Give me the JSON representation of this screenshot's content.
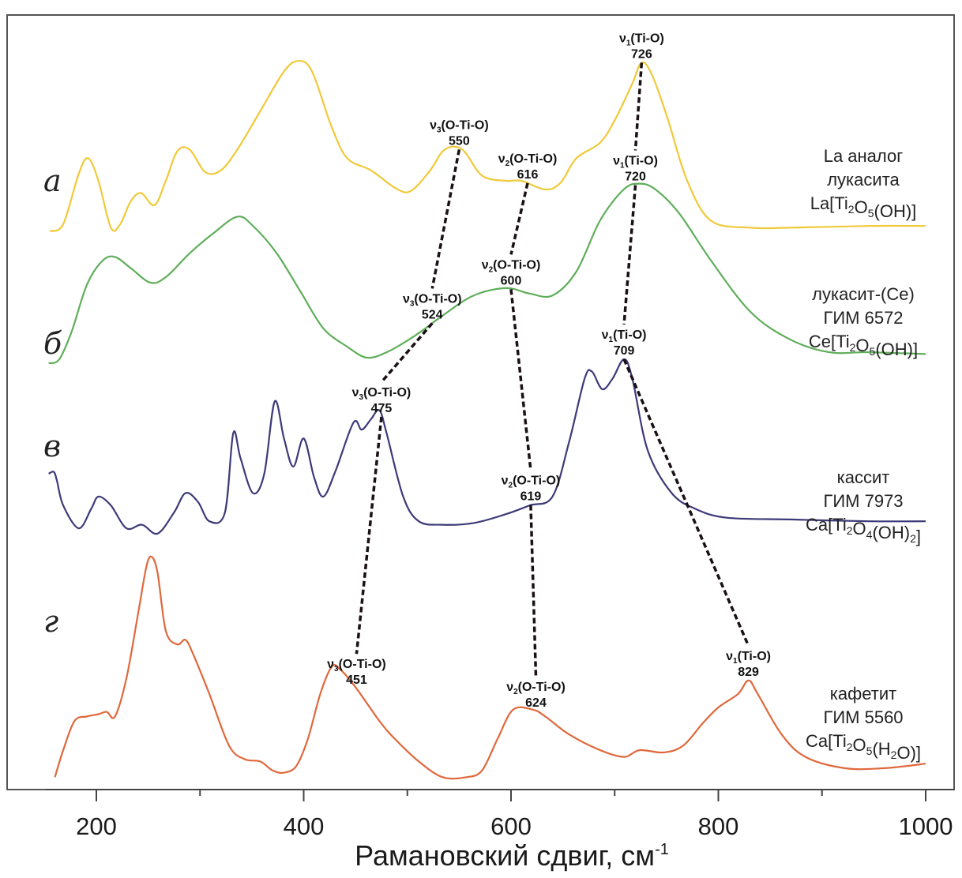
{
  "chart_data": {
    "type": "line",
    "title": "",
    "xlabel": "Рамановский сдвиг, см",
    "xlabel_superscript": "-1",
    "ylabel": "",
    "xlim": [
      150,
      1020
    ],
    "x_ticks_major": [
      200,
      400,
      600,
      800,
      1000
    ],
    "x_ticks_minor": [
      300,
      500,
      700,
      900
    ],
    "y_ticks": [],
    "grid": false,
    "layout": "stacked offset spectra, top to bottom",
    "series": [
      {
        "letter": "а",
        "name": "La аналог лукасита",
        "label_lines": [
          "La аналог",
          "лукасита"
        ],
        "formula": [
          [
            "La[Ti",
            false
          ],
          [
            "2",
            true
          ],
          [
            "O",
            false
          ],
          [
            "5",
            true
          ],
          [
            "(OH)]",
            false
          ]
        ],
        "color": "#f0c93a",
        "points": [
          [
            155,
            0.01
          ],
          [
            168,
            0.05
          ],
          [
            183,
            0.34
          ],
          [
            192,
            0.43
          ],
          [
            202,
            0.3
          ],
          [
            214,
            0.03
          ],
          [
            223,
            0.05
          ],
          [
            233,
            0.18
          ],
          [
            243,
            0.23
          ],
          [
            256,
            0.16
          ],
          [
            267,
            0.3
          ],
          [
            278,
            0.47
          ],
          [
            290,
            0.48
          ],
          [
            305,
            0.35
          ],
          [
            320,
            0.36
          ],
          [
            336,
            0.48
          ],
          [
            358,
            0.7
          ],
          [
            381,
            0.93
          ],
          [
            395,
            0.99
          ],
          [
            408,
            0.93
          ],
          [
            427,
            0.61
          ],
          [
            442,
            0.43
          ],
          [
            465,
            0.36
          ],
          [
            488,
            0.26
          ],
          [
            503,
            0.24
          ],
          [
            522,
            0.36
          ],
          [
            536,
            0.48
          ],
          [
            553,
            0.48
          ],
          [
            572,
            0.33
          ],
          [
            595,
            0.3
          ],
          [
            610,
            0.3
          ],
          [
            633,
            0.25
          ],
          [
            648,
            0.29
          ],
          [
            663,
            0.43
          ],
          [
            686,
            0.52
          ],
          [
            701,
            0.66
          ],
          [
            717,
            0.86
          ],
          [
            726,
            0.98
          ],
          [
            736,
            0.91
          ],
          [
            751,
            0.66
          ],
          [
            770,
            0.3
          ],
          [
            793,
            0.07
          ],
          [
            831,
            0.03
          ],
          [
            869,
            0.03
          ],
          [
            945,
            0.04
          ],
          [
            1000,
            0.04
          ]
        ]
      },
      {
        "letter": "б",
        "name": "лукасит-(Ce)",
        "label_lines": [
          "лукасит-(Ce)",
          "ГИМ 6572"
        ],
        "formula": [
          [
            "Ce[Ti",
            false
          ],
          [
            "2",
            true
          ],
          [
            "O",
            false
          ],
          [
            "5",
            true
          ],
          [
            "(OH)]",
            false
          ]
        ],
        "color": "#5fae5a",
        "points": [
          [
            154,
            0.0
          ],
          [
            164,
            0.02
          ],
          [
            176,
            0.17
          ],
          [
            191,
            0.43
          ],
          [
            206,
            0.56
          ],
          [
            218,
            0.58
          ],
          [
            233,
            0.52
          ],
          [
            252,
            0.44
          ],
          [
            267,
            0.47
          ],
          [
            290,
            0.6
          ],
          [
            313,
            0.71
          ],
          [
            336,
            0.8
          ],
          [
            351,
            0.75
          ],
          [
            374,
            0.6
          ],
          [
            397,
            0.39
          ],
          [
            419,
            0.19
          ],
          [
            442,
            0.09
          ],
          [
            461,
            0.03
          ],
          [
            480,
            0.06
          ],
          [
            499,
            0.12
          ],
          [
            515,
            0.18
          ],
          [
            534,
            0.26
          ],
          [
            564,
            0.37
          ],
          [
            595,
            0.41
          ],
          [
            618,
            0.38
          ],
          [
            640,
            0.37
          ],
          [
            663,
            0.5
          ],
          [
            686,
            0.78
          ],
          [
            709,
            0.95
          ],
          [
            724,
            0.98
          ],
          [
            739,
            0.95
          ],
          [
            762,
            0.82
          ],
          [
            793,
            0.56
          ],
          [
            831,
            0.28
          ],
          [
            869,
            0.13
          ],
          [
            907,
            0.06
          ],
          [
            945,
            0.06
          ],
          [
            1000,
            0.05
          ]
        ]
      },
      {
        "letter": "в",
        "name": "кассит",
        "label_lines": [
          "кассит",
          "ГИМ 7973"
        ],
        "formula": [
          [
            "Ca[Ti",
            false
          ],
          [
            "2",
            true
          ],
          [
            "O",
            false
          ],
          [
            "4",
            true
          ],
          [
            "(OH)",
            false
          ],
          [
            "2",
            true
          ],
          [
            "]",
            false
          ]
        ],
        "color": "#3d3a78",
        "points": [
          [
            154,
            0.35
          ],
          [
            159,
            0.36
          ],
          [
            162,
            0.31
          ],
          [
            168,
            0.17
          ],
          [
            183,
            0.04
          ],
          [
            195,
            0.15
          ],
          [
            202,
            0.22
          ],
          [
            214,
            0.17
          ],
          [
            229,
            0.04
          ],
          [
            244,
            0.06
          ],
          [
            259,
            0.01
          ],
          [
            275,
            0.13
          ],
          [
            286,
            0.24
          ],
          [
            298,
            0.19
          ],
          [
            309,
            0.08
          ],
          [
            324,
            0.13
          ],
          [
            332,
            0.58
          ],
          [
            339,
            0.44
          ],
          [
            351,
            0.24
          ],
          [
            362,
            0.35
          ],
          [
            372,
            0.76
          ],
          [
            381,
            0.55
          ],
          [
            390,
            0.39
          ],
          [
            400,
            0.55
          ],
          [
            410,
            0.33
          ],
          [
            419,
            0.22
          ],
          [
            431,
            0.37
          ],
          [
            448,
            0.64
          ],
          [
            456,
            0.6
          ],
          [
            465,
            0.66
          ],
          [
            473,
            0.71
          ],
          [
            480,
            0.58
          ],
          [
            496,
            0.22
          ],
          [
            511,
            0.08
          ],
          [
            534,
            0.06
          ],
          [
            564,
            0.07
          ],
          [
            595,
            0.12
          ],
          [
            618,
            0.17
          ],
          [
            640,
            0.22
          ],
          [
            656,
            0.53
          ],
          [
            671,
            0.89
          ],
          [
            678,
            0.93
          ],
          [
            688,
            0.83
          ],
          [
            698,
            0.89
          ],
          [
            709,
            1.0
          ],
          [
            717,
            0.89
          ],
          [
            732,
            0.48
          ],
          [
            755,
            0.24
          ],
          [
            778,
            0.15
          ],
          [
            808,
            0.1
          ],
          [
            869,
            0.09
          ],
          [
            945,
            0.08
          ],
          [
            1000,
            0.08
          ]
        ]
      },
      {
        "letter": "г",
        "name": "кафетит",
        "label_lines": [
          "кафетит",
          "ГИМ 5560"
        ],
        "formula": [
          [
            "Ca[Ti",
            false
          ],
          [
            "2",
            true
          ],
          [
            "O",
            false
          ],
          [
            "5",
            true
          ],
          [
            "(H",
            false
          ],
          [
            "2",
            true
          ],
          [
            "O)]",
            false
          ]
        ],
        "color": "#e0683c",
        "points": [
          [
            160,
            0.02
          ],
          [
            168,
            0.14
          ],
          [
            179,
            0.27
          ],
          [
            191,
            0.29
          ],
          [
            202,
            0.3
          ],
          [
            210,
            0.31
          ],
          [
            218,
            0.29
          ],
          [
            229,
            0.46
          ],
          [
            240,
            0.74
          ],
          [
            248,
            0.95
          ],
          [
            253,
            1.0
          ],
          [
            259,
            0.93
          ],
          [
            267,
            0.67
          ],
          [
            278,
            0.61
          ],
          [
            286,
            0.63
          ],
          [
            294,
            0.56
          ],
          [
            309,
            0.39
          ],
          [
            328,
            0.16
          ],
          [
            343,
            0.1
          ],
          [
            358,
            0.09
          ],
          [
            370,
            0.05
          ],
          [
            381,
            0.04
          ],
          [
            393,
            0.07
          ],
          [
            404,
            0.19
          ],
          [
            416,
            0.39
          ],
          [
            427,
            0.51
          ],
          [
            435,
            0.5
          ],
          [
            450,
            0.42
          ],
          [
            473,
            0.27
          ],
          [
            488,
            0.19
          ],
          [
            511,
            0.09
          ],
          [
            534,
            0.02
          ],
          [
            557,
            0.02
          ],
          [
            572,
            0.05
          ],
          [
            587,
            0.19
          ],
          [
            602,
            0.32
          ],
          [
            621,
            0.32
          ],
          [
            633,
            0.29
          ],
          [
            656,
            0.21
          ],
          [
            686,
            0.14
          ],
          [
            709,
            0.11
          ],
          [
            724,
            0.14
          ],
          [
            747,
            0.13
          ],
          [
            766,
            0.16
          ],
          [
            785,
            0.26
          ],
          [
            800,
            0.33
          ],
          [
            819,
            0.39
          ],
          [
            829,
            0.45
          ],
          [
            838,
            0.39
          ],
          [
            861,
            0.21
          ],
          [
            884,
            0.11
          ],
          [
            922,
            0.06
          ],
          [
            960,
            0.06
          ],
          [
            1000,
            0.08
          ]
        ]
      }
    ],
    "annotations": [
      {
        "series": 0,
        "mode": "ν",
        "sub": "3",
        "bond": "(O-Ti-O)",
        "value": "550",
        "x": 550
      },
      {
        "series": 0,
        "mode": "ν",
        "sub": "2",
        "bond": "(O-Ti-O)",
        "value": "616",
        "x": 616
      },
      {
        "series": 0,
        "mode": "ν",
        "sub": "1",
        "bond": "(Ti-O)",
        "value": "726",
        "x": 726
      },
      {
        "series": 1,
        "mode": "ν",
        "sub": "3",
        "bond": "(O-Ti-O)",
        "value": "524",
        "x": 524
      },
      {
        "series": 1,
        "mode": "ν",
        "sub": "2",
        "bond": "(O-Ti-O)",
        "value": "600",
        "x": 600
      },
      {
        "series": 1,
        "mode": "ν",
        "sub": "1",
        "bond": "(Ti-O)",
        "value": "720",
        "x": 720
      },
      {
        "series": 2,
        "mode": "ν",
        "sub": "3",
        "bond": "(O-Ti-O)",
        "value": "475",
        "x": 475
      },
      {
        "series": 2,
        "mode": "ν",
        "sub": "2",
        "bond": "(O-Ti-O)",
        "value": "619",
        "x": 619
      },
      {
        "series": 2,
        "mode": "ν",
        "sub": "1",
        "bond": "(Ti-O)",
        "value": "709",
        "x": 709
      },
      {
        "series": 3,
        "mode": "ν",
        "sub": "3",
        "bond": "(O-Ti-O)",
        "value": "451",
        "x": 451
      },
      {
        "series": 3,
        "mode": "ν",
        "sub": "2",
        "bond": "(O-Ti-O)",
        "value": "624",
        "x": 624
      },
      {
        "series": 3,
        "mode": "ν",
        "sub": "1",
        "bond": "(Ti-O)",
        "value": "829",
        "x": 829
      }
    ],
    "correlation_lines": [
      {
        "mode": "ν3(O-Ti-O)",
        "x_by_series": [
          550,
          524,
          475,
          451
        ]
      },
      {
        "mode": "ν2(O-Ti-O)",
        "x_by_series": [
          616,
          600,
          619,
          624
        ]
      },
      {
        "mode": "ν1(Ti-O)",
        "x_by_series": [
          726,
          720,
          709,
          829
        ]
      }
    ]
  }
}
